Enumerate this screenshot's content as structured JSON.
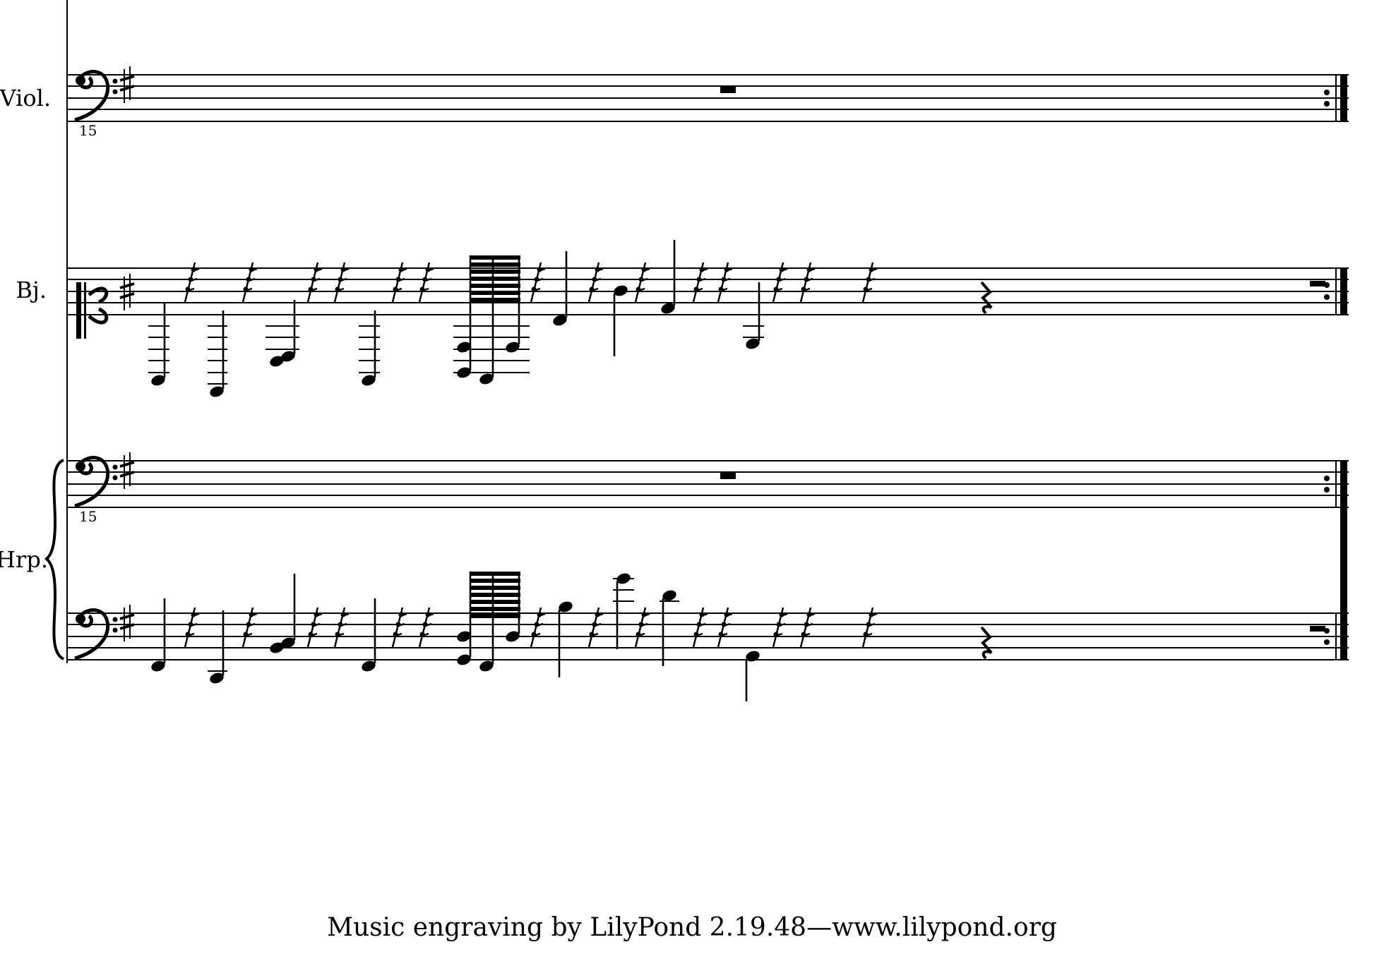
{
  "score": {
    "instruments": [
      {
        "name": "Viol.",
        "clef": "bass",
        "key_signature": "1 sharp",
        "clef_octave_mark": "15",
        "content": "whole-measure rest"
      },
      {
        "name": "Bj.",
        "clef": "alto",
        "key_signature": "1 sharp"
      },
      {
        "name": "Hrp.",
        "staves": [
          {
            "clef": "bass",
            "key_signature": "1 sharp",
            "clef_octave_mark": "15",
            "content": "whole-measure rest"
          },
          {
            "clef": "bass",
            "key_signature": "1 sharp"
          }
        ]
      }
    ],
    "final_barline": "repeat-end"
  },
  "footer": "Music engraving by LilyPond 2.19.48—www.lilypond.org"
}
